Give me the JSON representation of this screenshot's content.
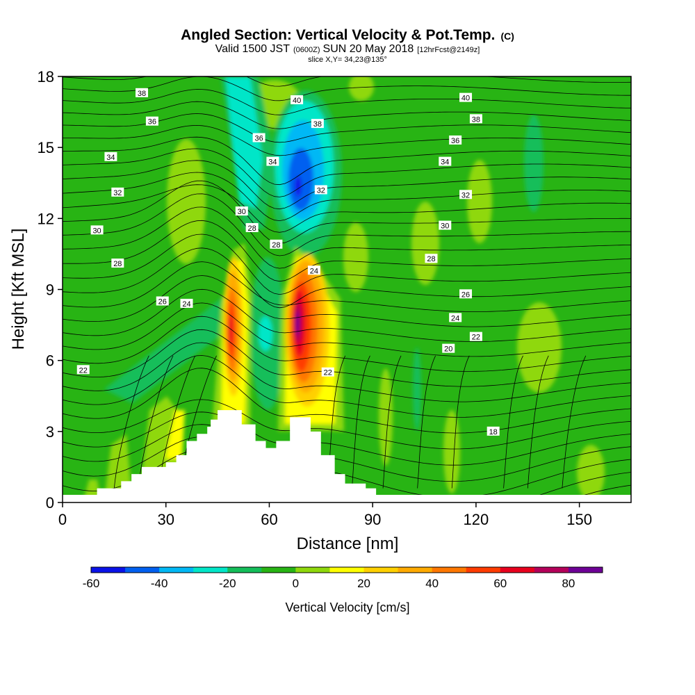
{
  "chart_data": {
    "type": "heatmap",
    "title": "Angled Section: Vertical Velocity & Pot.Temp.",
    "title_unit": "(C)",
    "subtitle_valid": "Valid 1500 JST",
    "subtitle_utc": "(0600Z)",
    "subtitle_date": "SUN 20 May 2018",
    "subtitle_fcst": "[12hrFcst@2149z]",
    "slice_label": "slice X,Y= 34,23@135°",
    "xlabel": "Distance [nm]",
    "ylabel": "Height [Kft MSL]",
    "xlim": [
      0,
      165
    ],
    "ylim": [
      0,
      18
    ],
    "xticks": [
      0,
      30,
      60,
      90,
      120,
      150
    ],
    "yticks": [
      0,
      3,
      6,
      9,
      12,
      15,
      18
    ],
    "colorbar": {
      "label": "Vertical Velocity [cm/s]",
      "range": [
        -60,
        90
      ],
      "ticks": [
        -60,
        -40,
        -20,
        0,
        20,
        40,
        60,
        80
      ],
      "colors": [
        "#0a12e8",
        "#0060f0",
        "#00b8f5",
        "#00e6c8",
        "#14be5a",
        "#28b414",
        "#8fd80c",
        "#ffff00",
        "#ffd000",
        "#ffaa00",
        "#ff7800",
        "#ff3c00",
        "#e8001e",
        "#b4005a",
        "#6e0096"
      ]
    },
    "background_color": "#28b414",
    "updraft_cores": [
      {
        "x": 48,
        "y_kft": 7.2,
        "max_cm_s": 65
      },
      {
        "x": 68,
        "y_kft": 7.3,
        "max_cm_s": 85
      }
    ],
    "downdraft_core": {
      "x": 69,
      "y_kft": 13.5,
      "min_cm_s": -60
    },
    "terrain": [
      [
        10,
        0.6
      ],
      [
        17,
        0.9
      ],
      [
        20,
        1.2
      ],
      [
        23,
        1.5
      ],
      [
        30,
        1.7
      ],
      [
        33,
        2.0
      ],
      [
        36,
        2.6
      ],
      [
        39,
        2.9
      ],
      [
        42,
        3.2
      ],
      [
        43,
        3.5
      ],
      [
        45,
        3.9
      ],
      [
        49,
        3.9
      ],
      [
        52,
        3.3
      ],
      [
        56,
        2.6
      ],
      [
        59,
        2.3
      ],
      [
        62,
        2.6
      ],
      [
        66,
        3.6
      ],
      [
        72,
        3.0
      ],
      [
        75,
        2.0
      ],
      [
        79,
        1.2
      ],
      [
        82,
        0.8
      ],
      [
        88,
        0.6
      ],
      [
        91,
        0.4
      ]
    ],
    "theta_labels": [
      {
        "text": "38",
        "x": 23,
        "y": 17.3
      },
      {
        "text": "36",
        "x": 26,
        "y": 16.1
      },
      {
        "text": "34",
        "x": 14,
        "y": 14.6
      },
      {
        "text": "32",
        "x": 16,
        "y": 13.1
      },
      {
        "text": "30",
        "x": 10,
        "y": 11.5
      },
      {
        "text": "28",
        "x": 16,
        "y": 10.1
      },
      {
        "text": "26",
        "x": 29,
        "y": 8.5
      },
      {
        "text": "24",
        "x": 36,
        "y": 8.4
      },
      {
        "text": "22",
        "x": 6,
        "y": 5.6
      },
      {
        "text": "30",
        "x": 52,
        "y": 12.3
      },
      {
        "text": "28",
        "x": 55,
        "y": 11.6
      },
      {
        "text": "28",
        "x": 62,
        "y": 10.9
      },
      {
        "text": "36",
        "x": 57,
        "y": 15.4
      },
      {
        "text": "34",
        "x": 61,
        "y": 14.4
      },
      {
        "text": "40",
        "x": 68,
        "y": 17.0
      },
      {
        "text": "38",
        "x": 74,
        "y": 16.0
      },
      {
        "text": "32",
        "x": 75,
        "y": 13.2
      },
      {
        "text": "24",
        "x": 73,
        "y": 9.8
      },
      {
        "text": "22",
        "x": 77,
        "y": 5.5
      },
      {
        "text": "40",
        "x": 117,
        "y": 17.1
      },
      {
        "text": "38",
        "x": 120,
        "y": 16.2
      },
      {
        "text": "36",
        "x": 114,
        "y": 15.3
      },
      {
        "text": "34",
        "x": 111,
        "y": 14.4
      },
      {
        "text": "32",
        "x": 117,
        "y": 13.0
      },
      {
        "text": "30",
        "x": 111,
        "y": 11.7
      },
      {
        "text": "28",
        "x": 107,
        "y": 10.3
      },
      {
        "text": "26",
        "x": 117,
        "y": 8.8
      },
      {
        "text": "24",
        "x": 114,
        "y": 7.8
      },
      {
        "text": "22",
        "x": 120,
        "y": 7.0
      },
      {
        "text": "20",
        "x": 112,
        "y": 6.5
      },
      {
        "text": "18",
        "x": 125,
        "y": 3.0
      }
    ]
  }
}
